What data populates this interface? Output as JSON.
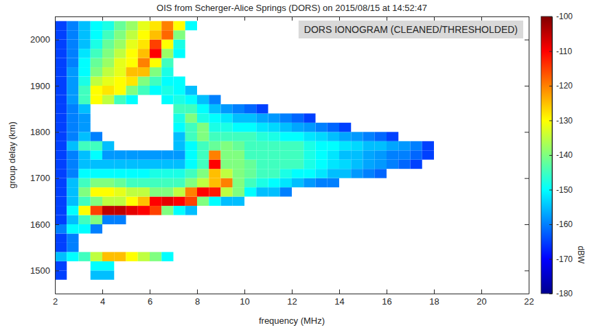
{
  "chart_data": {
    "type": "heatmap",
    "title": "OIS from Scherger-Alice Springs (DORS) on 2015/08/15 at 14:52:47",
    "x_label": "frequency (MHz)",
    "y_label": "group delay (km)",
    "annotations": [
      "DORS IONOGRAM (CLEANED/THRESHOLDED)"
    ],
    "color": "jet",
    "xlim": [
      2,
      22
    ],
    "ylim": [
      1450,
      2050
    ],
    "xticks": [
      2,
      4,
      6,
      8,
      10,
      12,
      14,
      16,
      18,
      20,
      22
    ],
    "yticks": [
      1500,
      1600,
      1700,
      1800,
      1900,
      2000
    ],
    "colorbar": {
      "range": [
        -180,
        -100
      ],
      "ticks": [
        -100,
        -110,
        -120,
        -130,
        -140,
        -150,
        -160,
        -170,
        -180
      ],
      "label": "dBW"
    },
    "x": [
      2.25,
      2.75,
      3.25,
      3.75,
      4.25,
      4.75,
      5.25,
      5.75,
      6.25,
      6.75,
      7.25,
      7.75,
      8.25,
      8.75,
      9.25,
      9.75,
      10.25,
      10.75,
      11.25,
      11.75,
      12.25,
      12.75,
      13.25,
      13.75,
      14.25,
      14.75,
      15.25,
      15.75,
      16.25,
      16.75,
      17.25,
      17.75
    ],
    "y": [
      1490,
      1510,
      1530,
      1550,
      1570,
      1590,
      1610,
      1630,
      1650,
      1670,
      1690,
      1710,
      1730,
      1750,
      1770,
      1790,
      1810,
      1830,
      1850,
      1870,
      1890,
      1910,
      1930,
      1950,
      1970,
      1990,
      2010,
      2030
    ],
    "values": [
      [
        -165,
        null,
        null,
        -155,
        -155,
        null,
        null,
        null,
        null,
        null,
        null,
        null,
        null,
        null,
        null,
        null,
        null,
        null,
        null,
        null,
        null,
        null,
        null,
        null,
        null,
        null,
        null,
        null,
        null,
        null,
        null,
        null
      ],
      [
        -165,
        null,
        null,
        -150,
        -150,
        null,
        null,
        null,
        null,
        null,
        null,
        null,
        null,
        null,
        null,
        null,
        null,
        null,
        null,
        null,
        null,
        null,
        null,
        null,
        null,
        null,
        null,
        null,
        null,
        null,
        null,
        null
      ],
      [
        -155,
        -150,
        -145,
        -135,
        -125,
        -125,
        -130,
        -135,
        -140,
        -150,
        null,
        null,
        null,
        null,
        null,
        null,
        null,
        null,
        null,
        null,
        null,
        null,
        null,
        null,
        null,
        null,
        null,
        null,
        null,
        null,
        null,
        null
      ],
      [
        -165,
        -160,
        null,
        null,
        null,
        null,
        null,
        null,
        null,
        null,
        null,
        null,
        null,
        null,
        null,
        null,
        null,
        null,
        null,
        null,
        null,
        null,
        null,
        null,
        null,
        null,
        null,
        null,
        null,
        null,
        null,
        null
      ],
      [
        -165,
        -160,
        null,
        null,
        null,
        null,
        null,
        null,
        null,
        null,
        null,
        null,
        null,
        null,
        null,
        null,
        null,
        null,
        null,
        null,
        null,
        null,
        null,
        null,
        null,
        null,
        null,
        null,
        null,
        null,
        null,
        null
      ],
      [
        -160,
        -150,
        -150,
        -160,
        null,
        null,
        null,
        null,
        null,
        null,
        null,
        null,
        null,
        null,
        null,
        null,
        null,
        null,
        null,
        null,
        null,
        null,
        null,
        null,
        null,
        null,
        null,
        null,
        null,
        null,
        null,
        null
      ],
      [
        -165,
        -155,
        -145,
        -140,
        -160,
        -160,
        null,
        null,
        null,
        null,
        null,
        null,
        null,
        null,
        null,
        null,
        null,
        null,
        null,
        null,
        null,
        null,
        null,
        null,
        null,
        null,
        null,
        null,
        null,
        null,
        null,
        null
      ],
      [
        -165,
        -150,
        -130,
        -115,
        -105,
        -105,
        -108,
        -110,
        -115,
        -140,
        -150,
        -155,
        null,
        null,
        null,
        null,
        null,
        null,
        null,
        null,
        null,
        null,
        null,
        null,
        null,
        null,
        null,
        null,
        null,
        null,
        null,
        null
      ],
      [
        -165,
        -155,
        -145,
        -140,
        -135,
        -135,
        -130,
        -125,
        -110,
        -108,
        -110,
        -115,
        -140,
        -150,
        -155,
        -155,
        null,
        null,
        null,
        null,
        null,
        null,
        null,
        null,
        null,
        null,
        null,
        null,
        null,
        null,
        null,
        null
      ],
      [
        -165,
        -155,
        -140,
        -130,
        -130,
        -132,
        -135,
        -135,
        -140,
        -140,
        -135,
        -120,
        -110,
        -112,
        -135,
        -140,
        -150,
        -155,
        -155,
        -160,
        null,
        null,
        null,
        null,
        null,
        null,
        null,
        null,
        null,
        null,
        null,
        null
      ],
      [
        -165,
        -155,
        -145,
        -140,
        -140,
        -142,
        -145,
        -145,
        -145,
        -145,
        -145,
        -140,
        -135,
        -125,
        -120,
        -140,
        -145,
        -148,
        -150,
        -152,
        -155,
        -158,
        -160,
        -160,
        null,
        null,
        null,
        null,
        null,
        null,
        null,
        null
      ],
      [
        -165,
        -160,
        -150,
        -150,
        -150,
        -150,
        -150,
        -150,
        -148,
        -148,
        -148,
        -145,
        -140,
        -125,
        -135,
        -140,
        -142,
        -145,
        -145,
        -148,
        -150,
        -150,
        -152,
        -155,
        -155,
        -158,
        -160,
        -162,
        null,
        null,
        null,
        null
      ],
      [
        -165,
        -160,
        -155,
        -155,
        -155,
        -155,
        -155,
        -155,
        -155,
        -155,
        -155,
        -150,
        -145,
        -110,
        -140,
        -140,
        -142,
        -145,
        -145,
        -145,
        -145,
        -148,
        -150,
        -152,
        -153,
        -155,
        -157,
        -158,
        -160,
        -162,
        -165,
        null
      ],
      [
        -165,
        -160,
        -155,
        -150,
        -158,
        -158,
        -158,
        -158,
        -158,
        -158,
        -158,
        -150,
        -145,
        -120,
        -140,
        -140,
        -145,
        -145,
        -145,
        -145,
        -145,
        -148,
        -150,
        -152,
        -155,
        -155,
        -157,
        -158,
        -160,
        -160,
        -162,
        -165
      ],
      [
        -165,
        -155,
        -145,
        -145,
        -155,
        null,
        null,
        null,
        null,
        null,
        -155,
        -150,
        -145,
        -142,
        -140,
        -142,
        -145,
        -145,
        -145,
        -145,
        -145,
        -148,
        -150,
        -150,
        -152,
        -153,
        -155,
        -155,
        -157,
        -158,
        -160,
        -165
      ],
      [
        -165,
        -160,
        -155,
        -160,
        null,
        null,
        null,
        null,
        null,
        null,
        -155,
        -145,
        -140,
        -145,
        -145,
        -145,
        -145,
        -147,
        -148,
        -150,
        -150,
        -152,
        -153,
        -155,
        -157,
        -158,
        -160,
        -162,
        -165,
        null,
        null,
        null
      ],
      [
        -165,
        -160,
        -158,
        null,
        null,
        null,
        null,
        null,
        null,
        null,
        -150,
        -145,
        -140,
        -148,
        -148,
        -150,
        -150,
        -152,
        -153,
        -155,
        -157,
        -158,
        -160,
        -162,
        -165,
        null,
        null,
        null,
        null,
        null,
        null,
        null
      ],
      [
        -165,
        -160,
        -158,
        null,
        null,
        null,
        null,
        null,
        null,
        null,
        -148,
        -140,
        -148,
        -150,
        -152,
        -155,
        -155,
        -157,
        -158,
        -160,
        -162,
        -165,
        null,
        null,
        null,
        null,
        null,
        null,
        null,
        null,
        null,
        null
      ],
      [
        -165,
        -160,
        -155,
        null,
        null,
        null,
        null,
        null,
        null,
        null,
        -145,
        -145,
        -150,
        -155,
        -158,
        -160,
        -162,
        -165,
        null,
        null,
        null,
        null,
        null,
        null,
        null,
        null,
        null,
        null,
        null,
        null,
        null,
        null
      ],
      [
        -165,
        -158,
        -145,
        -130,
        -135,
        -145,
        -150,
        null,
        null,
        -150,
        -148,
        -150,
        -155,
        -160,
        null,
        null,
        null,
        null,
        null,
        null,
        null,
        null,
        null,
        null,
        null,
        null,
        null,
        null,
        null,
        null,
        null,
        null
      ],
      [
        -165,
        -158,
        -145,
        -130,
        -128,
        -130,
        -140,
        -145,
        -150,
        -148,
        -150,
        -155,
        null,
        null,
        null,
        null,
        null,
        null,
        null,
        null,
        null,
        null,
        null,
        null,
        null,
        null,
        null,
        null,
        null,
        null,
        null,
        null
      ],
      [
        -165,
        -158,
        -148,
        -135,
        -132,
        -130,
        -128,
        -140,
        -145,
        -150,
        -150,
        null,
        null,
        null,
        null,
        null,
        null,
        null,
        null,
        null,
        null,
        null,
        null,
        null,
        null,
        null,
        null,
        null,
        null,
        null,
        null,
        null
      ],
      [
        -165,
        -158,
        -150,
        -140,
        -135,
        -132,
        -125,
        -125,
        -140,
        -148,
        null,
        null,
        null,
        null,
        null,
        null,
        null,
        null,
        null,
        null,
        null,
        null,
        null,
        null,
        null,
        null,
        null,
        null,
        null,
        null,
        null,
        null
      ],
      [
        -165,
        -160,
        -150,
        -142,
        -138,
        -132,
        -130,
        -120,
        -130,
        -145,
        null,
        null,
        null,
        null,
        null,
        null,
        null,
        null,
        null,
        null,
        null,
        null,
        null,
        null,
        null,
        null,
        null,
        null,
        null,
        null,
        null,
        null
      ],
      [
        -165,
        -160,
        -152,
        -145,
        -140,
        -135,
        -130,
        -125,
        -110,
        -138,
        -150,
        null,
        null,
        null,
        null,
        null,
        null,
        null,
        null,
        null,
        null,
        null,
        null,
        null,
        null,
        null,
        null,
        null,
        null,
        null,
        null,
        null
      ],
      [
        -165,
        -160,
        -155,
        -148,
        -142,
        -138,
        -132,
        -128,
        -115,
        -130,
        -148,
        null,
        null,
        null,
        null,
        null,
        null,
        null,
        null,
        null,
        null,
        null,
        null,
        null,
        null,
        null,
        null,
        null,
        null,
        null,
        null,
        null
      ],
      [
        -165,
        -160,
        -155,
        -150,
        -145,
        -140,
        -135,
        -130,
        -125,
        -118,
        -140,
        null,
        null,
        null,
        null,
        null,
        null,
        null,
        null,
        null,
        null,
        null,
        null,
        null,
        null,
        null,
        null,
        null,
        null,
        null,
        null,
        null
      ],
      [
        -165,
        -160,
        -155,
        -150,
        -148,
        -142,
        -138,
        -132,
        -128,
        -120,
        -130,
        -150,
        null,
        null,
        null,
        null,
        null,
        null,
        null,
        null,
        null,
        null,
        null,
        null,
        null,
        null,
        null,
        null,
        null,
        null,
        null,
        null
      ]
    ]
  }
}
